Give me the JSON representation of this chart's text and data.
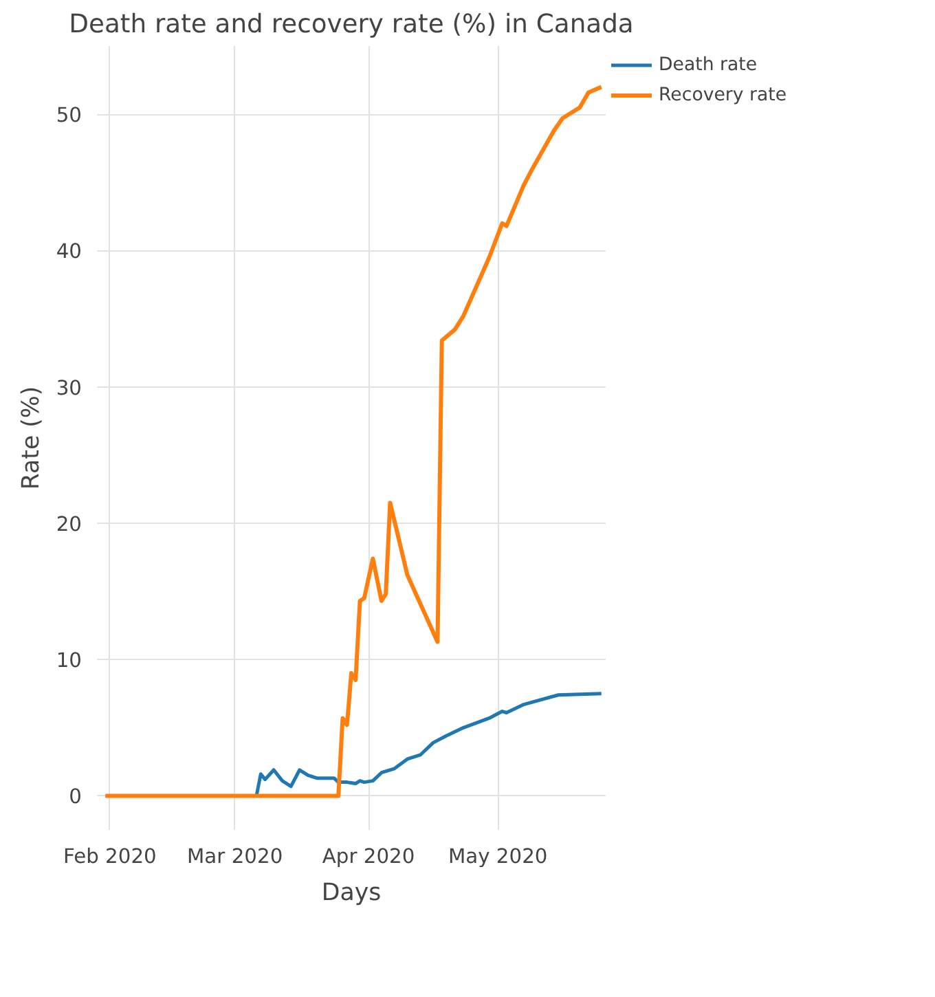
{
  "chart_data": {
    "type": "line",
    "title": "Death rate and recovery rate (%) in Canada",
    "xlabel": "Days",
    "ylabel": "Rate (%)",
    "xlim": [
      "2020-01-29",
      "2020-05-26"
    ],
    "xticks": [
      {
        "value": "2020-02-01",
        "label": "Feb 2020"
      },
      {
        "value": "2020-03-01",
        "label": "Mar 2020"
      },
      {
        "value": "2020-04-01",
        "label": "Apr 2020"
      },
      {
        "value": "2020-05-01",
        "label": "May 2020"
      }
    ],
    "ylim": [
      -2.5,
      55
    ],
    "yticks": [
      0,
      10,
      20,
      30,
      40,
      50
    ],
    "grid": true,
    "legend": "top right",
    "line_style": "solid",
    "series": [
      {
        "name": "Death rate",
        "color": "#1f77b4",
        "x": [
          "2020-01-31",
          "2020-03-06",
          "2020-03-07",
          "2020-03-08",
          "2020-03-10",
          "2020-03-12",
          "2020-03-14",
          "2020-03-16",
          "2020-03-18",
          "2020-03-20",
          "2020-03-24",
          "2020-03-25",
          "2020-03-27",
          "2020-03-29",
          "2020-03-30",
          "2020-03-31",
          "2020-04-02",
          "2020-04-04",
          "2020-04-07",
          "2020-04-10",
          "2020-04-13",
          "2020-04-16",
          "2020-04-19",
          "2020-04-23",
          "2020-04-29",
          "2020-05-02",
          "2020-05-03",
          "2020-05-07",
          "2020-05-15",
          "2020-05-25"
        ],
        "values": [
          0,
          0,
          1.6,
          1.2,
          1.9,
          1.1,
          0.7,
          1.9,
          1.5,
          1.3,
          1.3,
          1.0,
          1.0,
          0.9,
          1.1,
          1.0,
          1.1,
          1.7,
          2.0,
          2.7,
          3.0,
          3.9,
          4.4,
          5.0,
          5.7,
          6.2,
          6.1,
          6.7,
          7.4,
          7.5
        ]
      },
      {
        "name": "Recovery rate",
        "color": "#ff7f0e",
        "x": [
          "2020-01-31",
          "2020-03-25",
          "2020-03-26",
          "2020-03-27",
          "2020-03-28",
          "2020-03-29",
          "2020-03-30",
          "2020-03-31",
          "2020-04-02",
          "2020-04-04",
          "2020-04-05",
          "2020-04-06",
          "2020-04-10",
          "2020-04-17",
          "2020-04-18",
          "2020-04-21",
          "2020-04-23",
          "2020-04-29",
          "2020-05-02",
          "2020-05-03",
          "2020-05-07",
          "2020-05-09",
          "2020-05-14",
          "2020-05-16",
          "2020-05-20",
          "2020-05-22",
          "2020-05-25"
        ],
        "values": [
          0,
          0,
          5.7,
          5.2,
          9.0,
          8.5,
          14.3,
          14.5,
          17.4,
          14.3,
          14.8,
          21.5,
          16.2,
          11.3,
          33.4,
          34.2,
          35.2,
          39.5,
          42.0,
          41.8,
          44.8,
          46.0,
          48.8,
          49.7,
          50.5,
          51.6,
          52.0
        ]
      }
    ]
  }
}
